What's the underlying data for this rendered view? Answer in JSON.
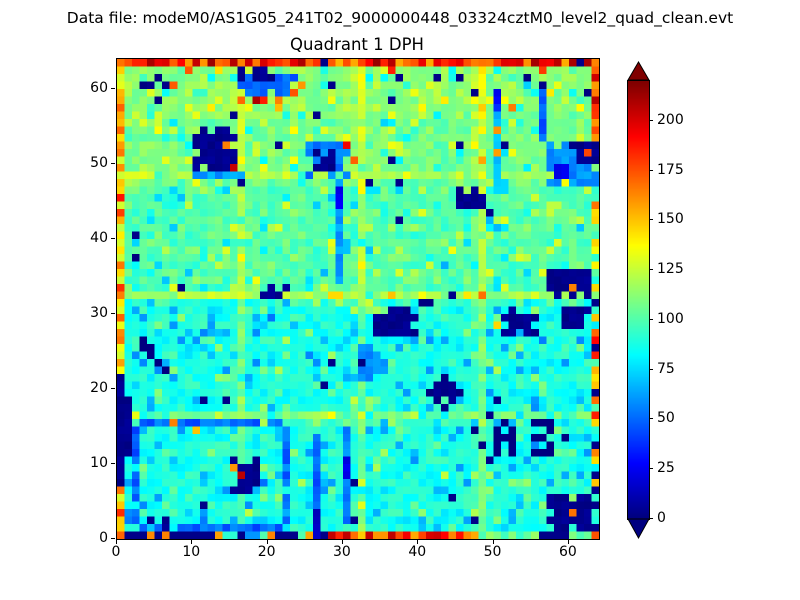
{
  "figure": {
    "suptitle": "Data file: modeM0/AS1G05_241T02_9000000448_03324cztM0_level2_quad_clean.evt",
    "background": "#ffffff",
    "text_color": "#000000"
  },
  "chart_data": {
    "type": "heatmap",
    "title": "Quadrant 1 DPH",
    "grid": {
      "nx": 64,
      "ny": 64
    },
    "xlim": [
      0,
      64
    ],
    "ylim": [
      0,
      64
    ],
    "x_ticks": [
      0,
      10,
      20,
      30,
      40,
      50,
      60
    ],
    "y_ticks": [
      0,
      10,
      20,
      30,
      40,
      50,
      60
    ],
    "grid_lines": false,
    "colormap": "jet",
    "clim": [
      0,
      220
    ],
    "colorbar": {
      "ticks": [
        0,
        25,
        50,
        75,
        100,
        125,
        150,
        175,
        200
      ],
      "extend": "both",
      "under_color": "#000080",
      "over_color": "#800000"
    },
    "field": {
      "seed": 1234,
      "base_low": 88,
      "base_high": 100,
      "noise": 9,
      "seams": [
        16,
        32,
        48
      ],
      "dark_scatter": 34,
      "hot_scatter": 9,
      "bottom_row": [
        {
          "x0": 0,
          "x1": 0,
          "m": "hot"
        },
        {
          "x0": 1,
          "x1": 3,
          "m": "navy"
        },
        {
          "x0": 4,
          "x1": 6,
          "m": "mix"
        },
        {
          "x0": 7,
          "x1": 12,
          "m": "navy"
        },
        {
          "x0": 13,
          "x1": 13,
          "m": "hot"
        },
        {
          "x0": 14,
          "x1": 18,
          "m": "cold"
        },
        {
          "x0": 19,
          "x1": 27,
          "m": "mix"
        },
        {
          "x0": 28,
          "x1": 47,
          "m": "hot"
        },
        {
          "x0": 48,
          "x1": 55,
          "m": "teal"
        },
        {
          "x0": 56,
          "x1": 59,
          "m": "navy"
        },
        {
          "x0": 60,
          "x1": 62,
          "m": "teal"
        },
        {
          "x0": 63,
          "x1": 63,
          "m": "hot"
        }
      ],
      "features": [
        {
          "x": 4,
          "y": 59,
          "w": 3,
          "h": 2,
          "v": 0,
          "e": 1
        },
        {
          "x": 16,
          "y": 59,
          "w": 8,
          "h": 4,
          "v": 48,
          "e": 1
        },
        {
          "x": 16,
          "y": 61,
          "w": 5,
          "h": 2,
          "v": 0,
          "e": 1
        },
        {
          "x": 10,
          "y": 49,
          "w": 6,
          "h": 6,
          "v": 0,
          "e": 1
        },
        {
          "x": 10,
          "y": 48,
          "w": 7,
          "h": 1,
          "v": 62
        },
        {
          "x": 25,
          "y": 48,
          "w": 6,
          "h": 5,
          "v": 55,
          "e": 1
        },
        {
          "x": 26,
          "y": 49,
          "w": 3,
          "h": 3,
          "v": 0,
          "e": 1
        },
        {
          "x": 29,
          "y": 34,
          "w": 1,
          "h": 14,
          "v": 62
        },
        {
          "x": 29,
          "y": 44,
          "w": 1,
          "h": 3,
          "v": 25
        },
        {
          "x": 45,
          "y": 44,
          "w": 4,
          "h": 3,
          "v": 0,
          "e": 1
        },
        {
          "x": 50,
          "y": 46,
          "w": 1,
          "h": 14,
          "v": 70
        },
        {
          "x": 50,
          "y": 57,
          "w": 1,
          "h": 3,
          "v": 30
        },
        {
          "x": 56,
          "y": 53,
          "w": 1,
          "h": 8,
          "v": 48
        },
        {
          "x": 57,
          "y": 47,
          "w": 7,
          "h": 6,
          "v": 58,
          "e": 1
        },
        {
          "x": 60,
          "y": 50,
          "w": 4,
          "h": 3,
          "v": 0,
          "e": 1
        },
        {
          "x": 58,
          "y": 48,
          "w": 2,
          "h": 2,
          "v": 20
        },
        {
          "x": 57,
          "y": 32,
          "w": 6,
          "h": 4,
          "v": 0,
          "e": 1
        },
        {
          "x": 19,
          "y": 32,
          "w": 4,
          "h": 2,
          "v": 0,
          "e": 1
        },
        {
          "x": 0,
          "y": 7,
          "w": 1,
          "h": 15,
          "v": 0
        },
        {
          "x": 1,
          "y": 11,
          "w": 1,
          "h": 8,
          "v": 0
        },
        {
          "t": "ring",
          "x": 2,
          "y": 1,
          "w": 21,
          "h": 15,
          "v": 50
        },
        {
          "x": 15,
          "y": 6,
          "w": 4,
          "h": 5,
          "v": 0,
          "e": 1
        },
        {
          "x": 4,
          "y": 1,
          "w": 3,
          "h": 2,
          "v": 0,
          "e": 1
        },
        {
          "x": 26,
          "y": 0,
          "w": 1,
          "h": 14,
          "v": 48
        },
        {
          "x": 26,
          "y": 0,
          "w": 1,
          "h": 4,
          "v": 12
        },
        {
          "x": 30,
          "y": 2,
          "w": 1,
          "h": 13,
          "v": 55
        },
        {
          "x": 30,
          "y": 8,
          "w": 1,
          "h": 3,
          "v": 20
        },
        {
          "x": 34,
          "y": 27,
          "w": 6,
          "h": 4,
          "v": 0,
          "e": 1
        },
        {
          "x": 32,
          "y": 21,
          "w": 4,
          "h": 5,
          "v": 58,
          "e": 1
        },
        {
          "x": 42,
          "y": 18,
          "w": 3,
          "h": 3,
          "v": 0,
          "e": 1
        },
        {
          "x": 51,
          "y": 27,
          "w": 5,
          "h": 4,
          "v": 0,
          "e": 1
        },
        {
          "x": 59,
          "y": 28,
          "w": 4,
          "h": 3,
          "v": 0,
          "e": 1
        },
        {
          "x": 57,
          "y": 1,
          "w": 6,
          "h": 5,
          "v": 0,
          "e": 1
        }
      ],
      "points": [
        [
          5,
          61,
          0
        ],
        [
          5,
          58,
          0
        ],
        [
          3,
          60,
          0
        ],
        [
          7,
          60,
          0
        ],
        [
          43,
          17,
          0
        ],
        [
          43,
          21,
          0
        ],
        [
          41,
          19,
          0
        ],
        [
          45,
          19,
          0
        ],
        [
          3,
          25,
          0
        ],
        [
          4,
          24,
          0
        ],
        [
          4,
          25,
          0
        ],
        [
          5,
          23,
          0
        ],
        [
          6,
          22,
          0
        ],
        [
          3,
          26,
          0
        ],
        [
          50,
          11,
          0
        ],
        [
          50,
          12,
          0
        ],
        [
          50,
          13,
          0
        ],
        [
          50,
          14,
          0
        ],
        [
          51,
          15,
          0
        ],
        [
          52,
          11,
          0
        ],
        [
          52,
          12,
          0
        ],
        [
          52,
          13,
          0
        ],
        [
          52,
          14,
          0
        ],
        [
          51,
          13,
          0
        ],
        [
          55,
          11,
          0
        ],
        [
          56,
          11,
          0
        ],
        [
          57,
          11,
          0
        ],
        [
          57,
          12,
          0
        ],
        [
          56,
          13,
          0
        ],
        [
          55,
          13,
          0
        ],
        [
          57,
          14,
          0
        ],
        [
          55,
          15,
          0
        ],
        [
          56,
          15,
          0
        ],
        [
          57,
          15,
          0
        ],
        [
          47,
          14,
          0
        ],
        [
          48,
          12,
          0
        ],
        [
          59,
          13,
          0
        ],
        [
          41,
          31,
          0
        ],
        [
          40,
          31,
          0
        ],
        [
          45,
          61,
          0
        ],
        [
          54,
          61,
          0
        ],
        [
          62,
          59,
          0
        ],
        [
          8,
          33,
          0
        ],
        [
          2,
          37,
          0
        ],
        [
          32,
          23,
          0
        ],
        [
          14,
          52,
          165
        ],
        [
          15,
          49,
          205
        ],
        [
          16,
          58,
          170
        ],
        [
          18,
          58,
          210
        ],
        [
          21,
          58,
          165
        ],
        [
          23,
          59,
          175
        ],
        [
          24,
          60,
          160
        ],
        [
          31,
          50,
          172
        ],
        [
          30,
          52,
          195
        ],
        [
          62,
          51,
          178
        ],
        [
          63,
          53,
          160
        ],
        [
          60,
          33,
          165
        ],
        [
          16,
          8,
          207
        ],
        [
          15,
          9,
          160
        ],
        [
          7,
          15,
          165
        ],
        [
          10,
          14,
          150
        ],
        [
          50,
          28,
          146
        ],
        [
          60,
          3,
          168
        ]
      ]
    }
  }
}
